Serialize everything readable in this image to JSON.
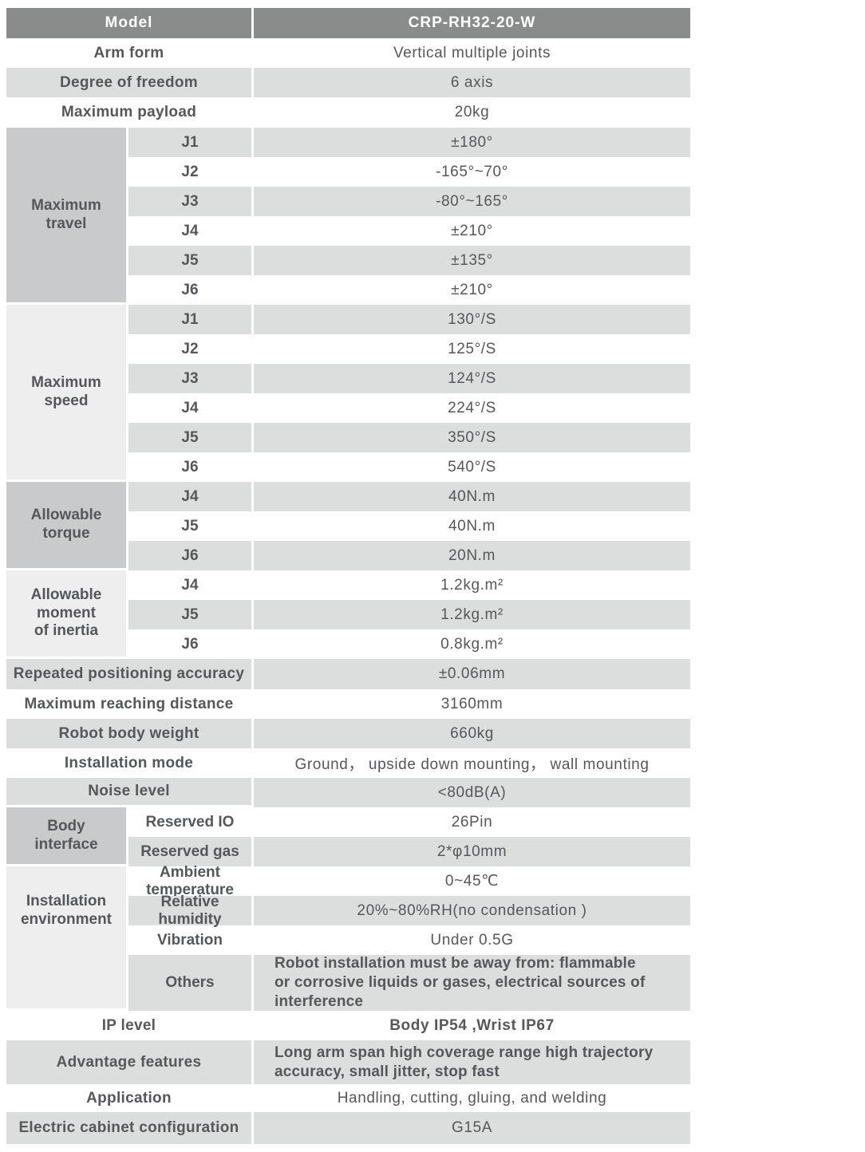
{
  "header": {
    "label": "Model",
    "value": "CRP-RH32-20-W"
  },
  "basic": [
    {
      "label": "Arm form",
      "value": "Vertical multiple joints"
    },
    {
      "label": "Degree of freedom",
      "value": "6 axis"
    },
    {
      "label": "Maximum payload",
      "value": "20kg"
    }
  ],
  "groups": {
    "travel": {
      "label": "Maximum\ntravel",
      "rows": [
        {
          "sub": "J1",
          "value": "±180°"
        },
        {
          "sub": "J2",
          "value": "-165°~70°"
        },
        {
          "sub": "J3",
          "value": "-80°~165°"
        },
        {
          "sub": "J4",
          "value": "±210°"
        },
        {
          "sub": "J5",
          "value": "±135°"
        },
        {
          "sub": "J6",
          "value": "±210°"
        }
      ]
    },
    "speed": {
      "label": "Maximum\nspeed",
      "rows": [
        {
          "sub": "J1",
          "value": "130°/S"
        },
        {
          "sub": "J2",
          "value": "125°/S"
        },
        {
          "sub": "J3",
          "value": "124°/S"
        },
        {
          "sub": "J4",
          "value": "224°/S"
        },
        {
          "sub": "J5",
          "value": "350°/S"
        },
        {
          "sub": "J6",
          "value": "540°/S"
        }
      ]
    },
    "torque": {
      "label": "Allowable\ntorque",
      "rows": [
        {
          "sub": "J4",
          "value": "40N.m"
        },
        {
          "sub": "J5",
          "value": "40N.m"
        },
        {
          "sub": "J6",
          "value": "20N.m"
        }
      ]
    },
    "inertia": {
      "label": "Allowable\nmoment\nof inertia",
      "rows": [
        {
          "sub": "J4",
          "value": "1.2kg.m²"
        },
        {
          "sub": "J5",
          "value": "1.2kg.m²"
        },
        {
          "sub": "J6",
          "value": "0.8kg.m²"
        }
      ]
    },
    "body_interface": {
      "label": "Body\ninterface",
      "rows": [
        {
          "sub": "Reserved IO",
          "value": "26Pin"
        },
        {
          "sub": "Reserved gas",
          "value": "2*φ10mm"
        }
      ]
    },
    "environment": {
      "label": "Installation\nenvironment",
      "rows": [
        {
          "sub": "Ambient\ntemperature",
          "value": "0~45℃"
        },
        {
          "sub": "Relative\nhumidity",
          "value": "20%~80%RH(no condensation )"
        },
        {
          "sub": "Vibration",
          "value": "Under 0.5G"
        },
        {
          "sub": "Others",
          "value": "Robot installation must be away from: flammable\nor corrosive liquids or gases, electrical sources of\ninterference"
        }
      ]
    }
  },
  "metrics": [
    {
      "label": "Repeated positioning accuracy",
      "value": "±0.06mm"
    },
    {
      "label": "Maximum reaching distance",
      "value": "3160mm"
    },
    {
      "label": "Robot body weight",
      "value": "660kg"
    },
    {
      "label": "Installation mode",
      "value": "Ground， upside down mounting， wall mounting"
    },
    {
      "label": "Noise level",
      "value": "<80dB(A)"
    }
  ],
  "footer": [
    {
      "label": "IP level",
      "value": "Body IP54 ,Wrist IP67"
    },
    {
      "label": "Advantage features",
      "value": "Long arm span high coverage range  high trajectory\naccuracy, small jitter, stop fast"
    },
    {
      "label": "Application",
      "value": "Handling, cutting, gluing, and welding"
    },
    {
      "label": "Electric cabinet configuration",
      "value": "G15A"
    }
  ],
  "colors": {
    "header_bg": "#8a8b8b",
    "row_gray": "#dcdddd",
    "group_dark": "#c9cacb",
    "group_light": "#eeeeee",
    "text": "#55575b",
    "header_text": "#ffffff"
  }
}
